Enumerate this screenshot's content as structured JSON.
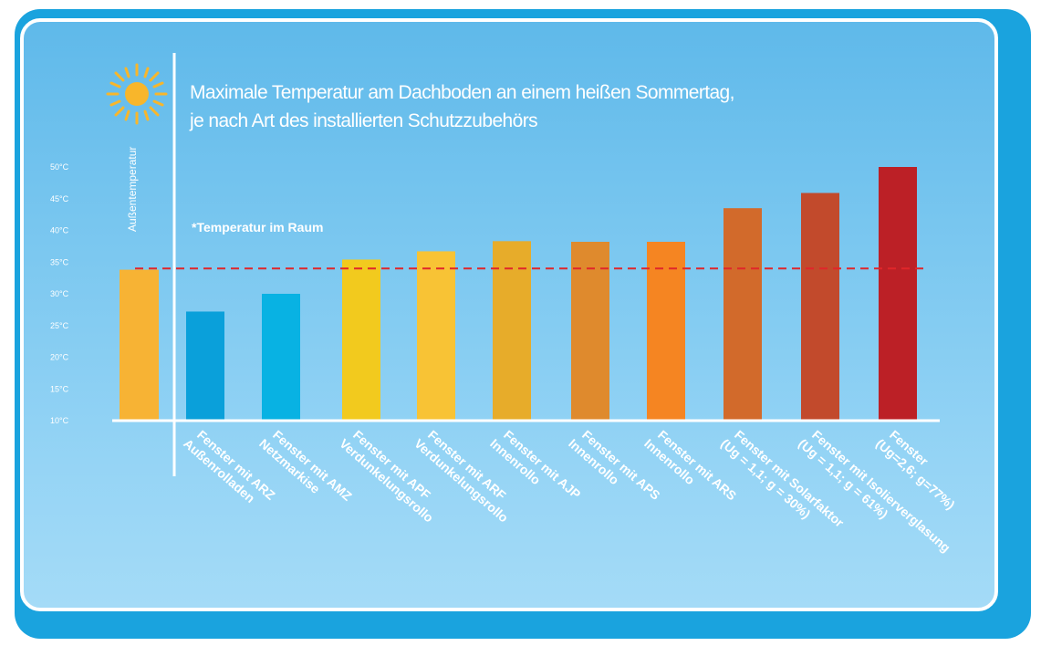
{
  "chart_data": {
    "type": "bar",
    "title_lines": [
      "Maximale Temperatur am Dachboden an einem heißen Sommertag,",
      "je nach Art des installierten Schutzzubehörs"
    ],
    "ylabel": "Außentemperatur",
    "reference_label": "*Temperatur im Raum",
    "reference_value": 34,
    "ylim": [
      10,
      50
    ],
    "yticks": [
      {
        "value": 50,
        "label": "50°C"
      },
      {
        "value": 45,
        "label": "45°C"
      },
      {
        "value": 40,
        "label": "40°C"
      },
      {
        "value": 35,
        "label": "35°C"
      },
      {
        "value": 30,
        "label": "30°C"
      },
      {
        "value": 25,
        "label": "25°C"
      },
      {
        "value": 20,
        "label": "20°C"
      },
      {
        "value": 15,
        "label": "15°C"
      },
      {
        "value": 10,
        "label": "10°C"
      }
    ],
    "outside_temperature": {
      "value": 33.8,
      "color": "#f7b334"
    },
    "bars": [
      {
        "lines": [
          "Fenster mit ARZ",
          "Außenrolladen"
        ],
        "value": 27.2,
        "color": "#0aa0da"
      },
      {
        "lines": [
          "Fenster mit AMZ",
          "Netzmarkise"
        ],
        "value": 30.0,
        "color": "#08b2e3"
      },
      {
        "lines": [
          "Fenster mit APF",
          "Verdunkelungsrollo"
        ],
        "value": 35.4,
        "color": "#f2ca1e"
      },
      {
        "lines": [
          "Fenster mit ARF",
          "Verdunkelungsrollo"
        ],
        "value": 36.7,
        "color": "#f8c335"
      },
      {
        "lines": [
          "Fenster mit AJP",
          "Innenrollo"
        ],
        "value": 38.3,
        "color": "#e7ac2a"
      },
      {
        "lines": [
          "Fenster mit APS",
          "Innenrollo"
        ],
        "value": 38.2,
        "color": "#df8a2d"
      },
      {
        "lines": [
          "Fenster mit ARS",
          "Innenrollo"
        ],
        "value": 38.2,
        "color": "#f58522"
      },
      {
        "lines": [
          "Fenster mit Solarfaktor",
          "(Ug = 1,1; g = 30%)"
        ],
        "value": 43.5,
        "color": "#d26a2b"
      },
      {
        "lines": [
          "Fenster mit Isolierverglasung",
          "(Ug = 1,1; g = 61%)"
        ],
        "value": 45.9,
        "color": "#c24a2c"
      },
      {
        "lines": [
          "Fenster",
          "(Ug=2,6; g=77%)"
        ],
        "value": 50.0,
        "color": "#bc2026"
      }
    ],
    "colors": {
      "reference_line": "#e0262a",
      "axis": "#ffffff",
      "sun": "#f8b62b"
    }
  }
}
